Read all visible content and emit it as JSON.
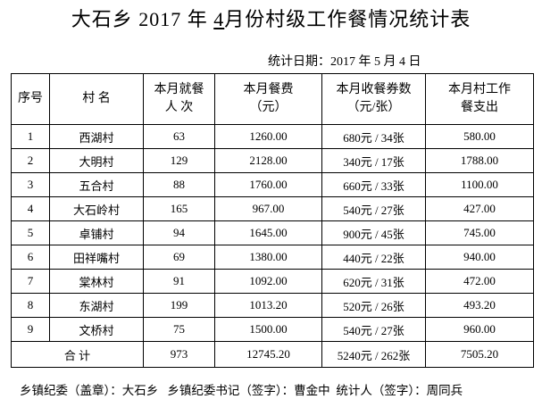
{
  "title": {
    "prefix": "大石乡 2017 年 ",
    "month": "4",
    "suffix": "月份村级工作餐情况统计表"
  },
  "date": "统计日期：2017 年 5 月 4 日",
  "table": {
    "header": [
      [
        "序号"
      ],
      [
        "村 名"
      ],
      [
        "本月就餐",
        "人 次"
      ],
      [
        "本月餐费",
        "（元）"
      ],
      [
        "本月收餐券数",
        "（元/张）"
      ],
      [
        "本月村工作",
        "餐支出"
      ]
    ],
    "rows": [
      [
        "1",
        "西湖村",
        "63",
        "1260.00",
        "680元 / 34张",
        "580.00"
      ],
      [
        "2",
        "大明村",
        "129",
        "2128.00",
        "340元 / 17张",
        "1788.00"
      ],
      [
        "3",
        "五合村",
        "88",
        "1760.00",
        "660元 / 33张",
        "1100.00"
      ],
      [
        "4",
        "大石岭村",
        "165",
        "967.00",
        "540元 / 27张",
        "427.00"
      ],
      [
        "5",
        "卓铺村",
        "94",
        "1645.00",
        "900元 / 45张",
        "745.00"
      ],
      [
        "6",
        "田祥嘴村",
        "69",
        "1380.00",
        "440元 / 22张",
        "940.00"
      ],
      [
        "7",
        "棠林村",
        "91",
        "1092.00",
        "620元 / 31张",
        "472.00"
      ],
      [
        "8",
        "东湖村",
        "199",
        "1013.20",
        "520元 / 26张",
        "493.20"
      ],
      [
        "9",
        "文桥村",
        "75",
        "1500.00",
        "540元 / 27张",
        "960.00"
      ]
    ],
    "total": [
      "合 计",
      "973",
      "12745.20",
      "5240元 / 262张",
      "7505.20"
    ]
  },
  "footer": "乡镇纪委（盖章）：大石乡   乡镇纪委书记（签字）：曹金中  统计人（签字）：周同兵"
}
